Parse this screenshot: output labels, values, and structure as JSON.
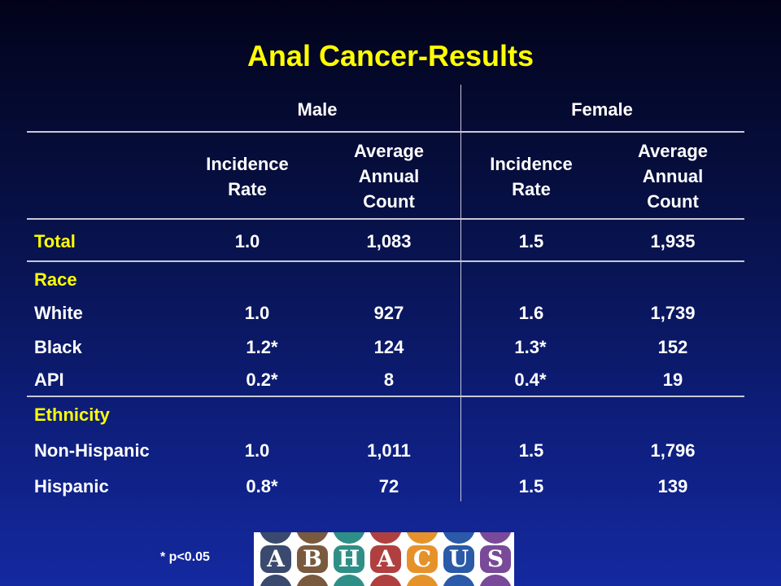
{
  "title": "Anal Cancer-Results",
  "groups": {
    "male": "Male",
    "female": "Female"
  },
  "columns": {
    "male_rate": "Incidence\nRate",
    "male_count": "Average\nAnnual\nCount",
    "female_rate": "Incidence\nRate",
    "female_count": "Average\nAnnual\nCount"
  },
  "rows": {
    "total": {
      "label": "Total",
      "male_rate": "1.0",
      "male_count": "1,083",
      "female_rate": "1.5",
      "female_count": "1,935"
    },
    "race_heading": "Race",
    "white": {
      "label": "White",
      "male_rate": "1.0",
      "male_count": "927",
      "female_rate": "1.6",
      "female_count": "1,739"
    },
    "black": {
      "label": "Black",
      "male_rate": "1.2*",
      "male_count": "124",
      "female_rate": "1.3*",
      "female_count": "152"
    },
    "api": {
      "label": "API",
      "male_rate": "0.2*",
      "male_count": "8",
      "female_rate": "0.4*",
      "female_count": "19"
    },
    "ethnicity_heading": "Ethnicity",
    "nonhispanic": {
      "label": "Non-Hispanic",
      "male_rate": "1.0",
      "male_count": "1,011",
      "female_rate": "1.5",
      "female_count": "1,796"
    },
    "hispanic": {
      "label": "Hispanic",
      "male_rate": "0.8*",
      "male_count": "72",
      "female_rate": "1.5",
      "female_count": "139"
    }
  },
  "footnote": "* p<0.05",
  "logo": {
    "letters": [
      "A",
      "B",
      "H",
      "A",
      "C",
      "U",
      "S"
    ],
    "colors": [
      "#3a4a6e",
      "#7a5a3e",
      "#2f8f86",
      "#b04040",
      "#e6922a",
      "#2a5aa8",
      "#7a4a9a"
    ]
  },
  "colors": {
    "heading": "#ffff00",
    "text": "#ffffff"
  }
}
